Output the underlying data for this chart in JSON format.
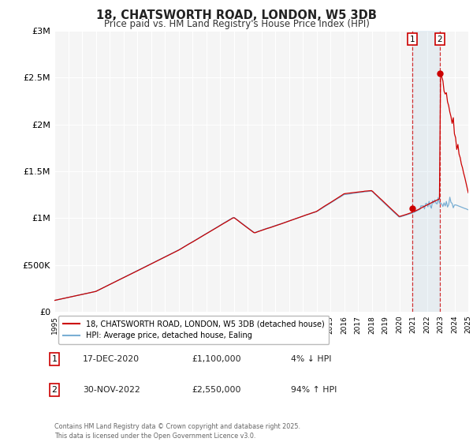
{
  "title": "18, CHATSWORTH ROAD, LONDON, W5 3DB",
  "subtitle": "Price paid vs. HM Land Registry's House Price Index (HPI)",
  "ylim": [
    0,
    3000000
  ],
  "yticks": [
    0,
    500000,
    1000000,
    1500000,
    2000000,
    2500000,
    3000000
  ],
  "ytick_labels": [
    "£0",
    "£500K",
    "£1M",
    "£1.5M",
    "£2M",
    "£2.5M",
    "£3M"
  ],
  "background_color": "#ffffff",
  "plot_bg_color": "#f5f5f5",
  "grid_color": "#ffffff",
  "hpi_color": "#7aafd4",
  "price_color": "#cc0000",
  "point1_price": 1100000,
  "point1_label": "4% ↓ HPI",
  "point1_year": 2020.96,
  "point1_date": "17-DEC-2020",
  "point2_price": 2550000,
  "point2_label": "94% ↑ HPI",
  "point2_year": 2022.92,
  "point2_date": "30-NOV-2022",
  "legend_label1": "18, CHATSWORTH ROAD, LONDON, W5 3DB (detached house)",
  "legend_label2": "HPI: Average price, detached house, Ealing",
  "footnote": "Contains HM Land Registry data © Crown copyright and database right 2025.\nThis data is licensed under the Open Government Licence v3.0.",
  "xstart": 1995,
  "xend": 2025
}
